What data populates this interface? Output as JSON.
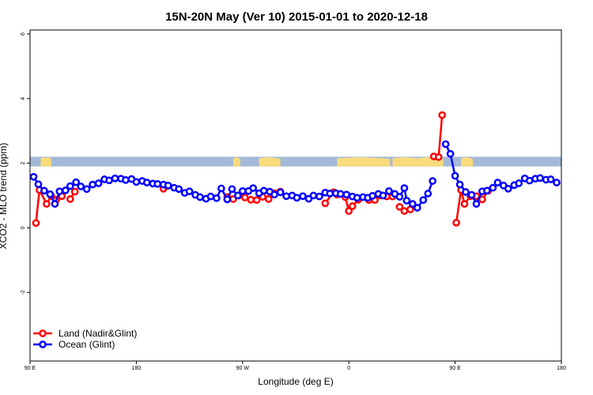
{
  "chart_data": {
    "type": "line",
    "title": "15N-20N May (Ver 10)   2015-01-01 to 2020-12-18",
    "xlabel": "Longitude (deg E)",
    "ylabel": "XCO2 - MLO trend (ppm)",
    "x_ticks": [
      {
        "value": 90,
        "label": "90 E"
      },
      {
        "value": 180,
        "label": "180"
      },
      {
        "value": 270,
        "label": "90 W"
      },
      {
        "value": 360,
        "label": "0"
      },
      {
        "value": 450,
        "label": "90 E"
      },
      {
        "value": 540,
        "label": "180"
      }
    ],
    "y_ticks": [
      {
        "value": -2,
        "label": "-2"
      },
      {
        "value": 0,
        "label": "0"
      },
      {
        "value": 2,
        "label": "2"
      },
      {
        "value": 4,
        "label": "4"
      },
      {
        "value": 6,
        "label": "6"
      }
    ],
    "xlim": [
      90,
      540
    ],
    "ylim": [
      -4,
      6
    ],
    "map_strip": {
      "ylim": [
        1.9,
        2.2
      ],
      "ocean_color": "#a4b9d8",
      "land_color": "#f8dc7c"
    },
    "legend": {
      "position": "bottom-left"
    },
    "series": [
      {
        "name": "Land (Nadir&Glint)",
        "color": "#ff0000",
        "segments": [
          [
            [
              95,
              0.15
            ],
            [
              98,
              1.17
            ],
            [
              104,
              0.74
            ],
            [
              108,
              0.98
            ],
            [
              112,
              0.86
            ],
            [
              117,
              0.98
            ]
          ],
          [
            [
              124,
              0.89
            ],
            [
              128,
              1.12
            ]
          ],
          [
            [
              203,
              1.21
            ],
            [
              206,
              1.29
            ]
          ],
          [
            [
              257,
              0.95
            ],
            [
              262,
              0.89
            ],
            [
              267,
              1.0
            ],
            [
              272,
              0.94
            ],
            [
              277,
              0.87
            ],
            [
              282,
              0.86
            ],
            [
              287,
              0.96
            ],
            [
              292,
              0.89
            ],
            [
              297,
              1.07
            ],
            [
              302,
              1.12
            ]
          ],
          [
            [
              340,
              0.76
            ],
            [
              347,
              1.1
            ],
            [
              350,
              1.03
            ],
            [
              357,
              0.95
            ],
            [
              360,
              0.52
            ],
            [
              363,
              0.67
            ],
            [
              368,
              0.87
            ]
          ],
          [
            [
              377,
              0.86
            ],
            [
              382,
              0.86
            ],
            [
              387,
              1.0
            ],
            [
              392,
              0.97
            ],
            [
              397,
              0.97
            ]
          ],
          [
            [
              403,
              0.65
            ],
            [
              407,
              0.52
            ],
            [
              412,
              0.57
            ]
          ],
          [
            [
              432,
              2.21
            ],
            [
              436,
              2.19
            ],
            [
              439,
              3.49
            ]
          ],
          [
            [
              451,
              0.16
            ],
            [
              455,
              1.17
            ],
            [
              458,
              0.74
            ],
            [
              463,
              0.98
            ],
            [
              468,
              0.98
            ],
            [
              473,
              0.88
            ],
            [
              478,
              1.15
            ]
          ]
        ]
      },
      {
        "name": "Ocean (Glint)",
        "color": "#0000ff",
        "segments": [
          [
            [
              93,
              1.58
            ],
            [
              97,
              1.35
            ],
            [
              102,
              1.15
            ],
            [
              107,
              1.04
            ],
            [
              111,
              0.74
            ],
            [
              115,
              1.13
            ],
            [
              120,
              1.16
            ],
            [
              124,
              1.29
            ],
            [
              129,
              1.41
            ],
            [
              133,
              1.28
            ],
            [
              138,
              1.2
            ],
            [
              143,
              1.34
            ],
            [
              148,
              1.38
            ],
            [
              153,
              1.5
            ],
            [
              157,
              1.47
            ],
            [
              162,
              1.53
            ],
            [
              167,
              1.52
            ],
            [
              171,
              1.48
            ],
            [
              176,
              1.51
            ],
            [
              180,
              1.42
            ],
            [
              185,
              1.45
            ],
            [
              189,
              1.4
            ],
            [
              194,
              1.37
            ],
            [
              198,
              1.36
            ],
            [
              203,
              1.34
            ],
            [
              207,
              1.31
            ],
            [
              212,
              1.24
            ],
            [
              216,
              1.2
            ],
            [
              221,
              1.08
            ],
            [
              225,
              1.13
            ],
            [
              230,
              1.02
            ],
            [
              234,
              0.95
            ],
            [
              239,
              0.9
            ],
            [
              243,
              0.97
            ],
            [
              248,
              0.92
            ],
            [
              252,
              1.22
            ],
            [
              257,
              0.88
            ],
            [
              261,
              1.2
            ],
            [
              266,
              1.0
            ],
            [
              270,
              1.14
            ],
            [
              275,
              1.14
            ],
            [
              279,
              1.23
            ],
            [
              284,
              1.07
            ],
            [
              288,
              1.15
            ],
            [
              293,
              1.12
            ],
            [
              297,
              1.03
            ],
            [
              302,
              1.1
            ],
            [
              307,
              0.98
            ],
            [
              312,
              1.0
            ],
            [
              316,
              0.93
            ],
            [
              321,
              0.98
            ],
            [
              326,
              0.9
            ],
            [
              330,
              1.0
            ],
            [
              335,
              0.97
            ],
            [
              340,
              1.09
            ],
            [
              344,
              1.06
            ],
            [
              349,
              1.07
            ],
            [
              353,
              1.05
            ],
            [
              358,
              1.03
            ],
            [
              363,
              0.97
            ],
            [
              367,
              0.93
            ],
            [
              372,
              0.95
            ],
            [
              376,
              0.93
            ],
            [
              380,
              0.99
            ],
            [
              385,
              1.05
            ],
            [
              389,
              1.0
            ],
            [
              394,
              1.14
            ],
            [
              399,
              1.05
            ],
            [
              403,
              0.96
            ],
            [
              407,
              1.23
            ],
            [
              409,
              0.84
            ],
            [
              414,
              0.74
            ],
            [
              418,
              0.62
            ],
            [
              423,
              0.86
            ],
            [
              427,
              1.06
            ],
            [
              431,
              1.45
            ]
          ],
          [
            [
              442,
              2.59
            ],
            [
              446,
              2.29
            ],
            [
              450,
              1.61
            ],
            [
              454,
              1.34
            ],
            [
              459,
              1.11
            ],
            [
              464,
              1.02
            ],
            [
              468,
              0.74
            ],
            [
              473,
              1.13
            ],
            [
              477,
              1.15
            ],
            [
              482,
              1.24
            ],
            [
              486,
              1.4
            ],
            [
              491,
              1.31
            ],
            [
              495,
              1.21
            ],
            [
              500,
              1.32
            ],
            [
              504,
              1.38
            ],
            [
              509,
              1.53
            ],
            [
              513,
              1.46
            ],
            [
              518,
              1.52
            ],
            [
              522,
              1.54
            ],
            [
              527,
              1.49
            ],
            [
              531,
              1.5
            ],
            [
              536,
              1.4
            ]
          ]
        ]
      }
    ]
  }
}
